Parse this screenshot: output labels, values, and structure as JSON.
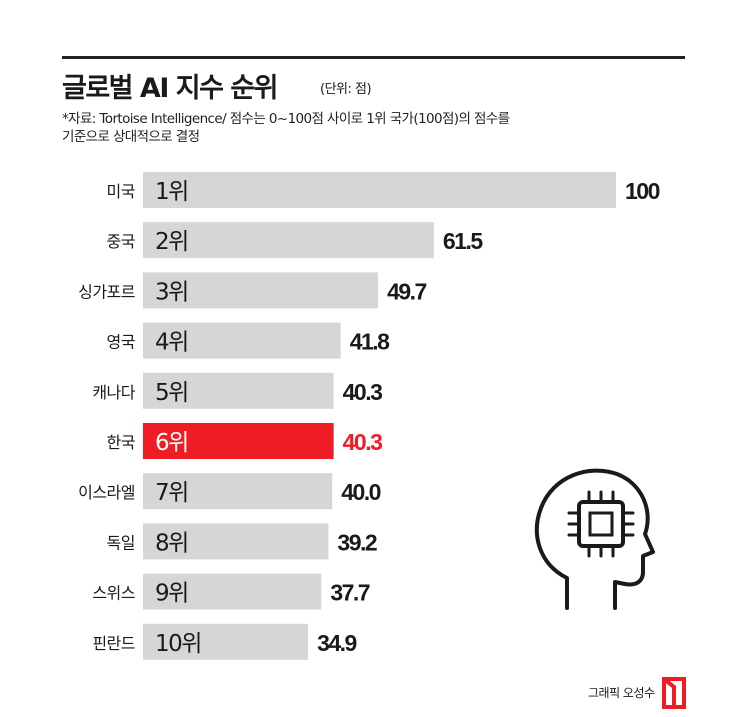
{
  "title": "글로벌 AI 지수 순위",
  "unit_note": "(단위: 점)",
  "source_line1": "*자료: Tortoise Intelligence/ 점수는 0~100점 사이로 1위 국가(100점)의 점수를",
  "source_line2": "기준으로 상대적으로 결정",
  "credit": "그래픽 오성수",
  "icons": {
    "head": "head-with-chip-icon",
    "logo": "publisher-logo-icon"
  },
  "colors": {
    "bar": "#d6d6d6",
    "highlight": "#ee1c25",
    "text": "#1a1a1a"
  },
  "chart_data": {
    "type": "bar",
    "orientation": "horizontal",
    "categories": [
      "미국",
      "중국",
      "싱가포르",
      "영국",
      "캐나다",
      "한국",
      "이스라엘",
      "독일",
      "스위스",
      "핀란드"
    ],
    "rank_labels": [
      "1위",
      "2위",
      "3위",
      "4위",
      "5위",
      "6위",
      "7위",
      "8위",
      "9위",
      "10위"
    ],
    "values": [
      100,
      61.5,
      49.7,
      41.8,
      40.3,
      40.3,
      40.0,
      39.2,
      37.7,
      34.9
    ],
    "value_labels": [
      "100",
      "61.5",
      "49.7",
      "41.8",
      "40.3",
      "40.3",
      "40.0",
      "39.2",
      "37.7",
      "34.9"
    ],
    "highlight_index": 5,
    "xlim": [
      0,
      100
    ],
    "grid": false,
    "legend": "none"
  }
}
